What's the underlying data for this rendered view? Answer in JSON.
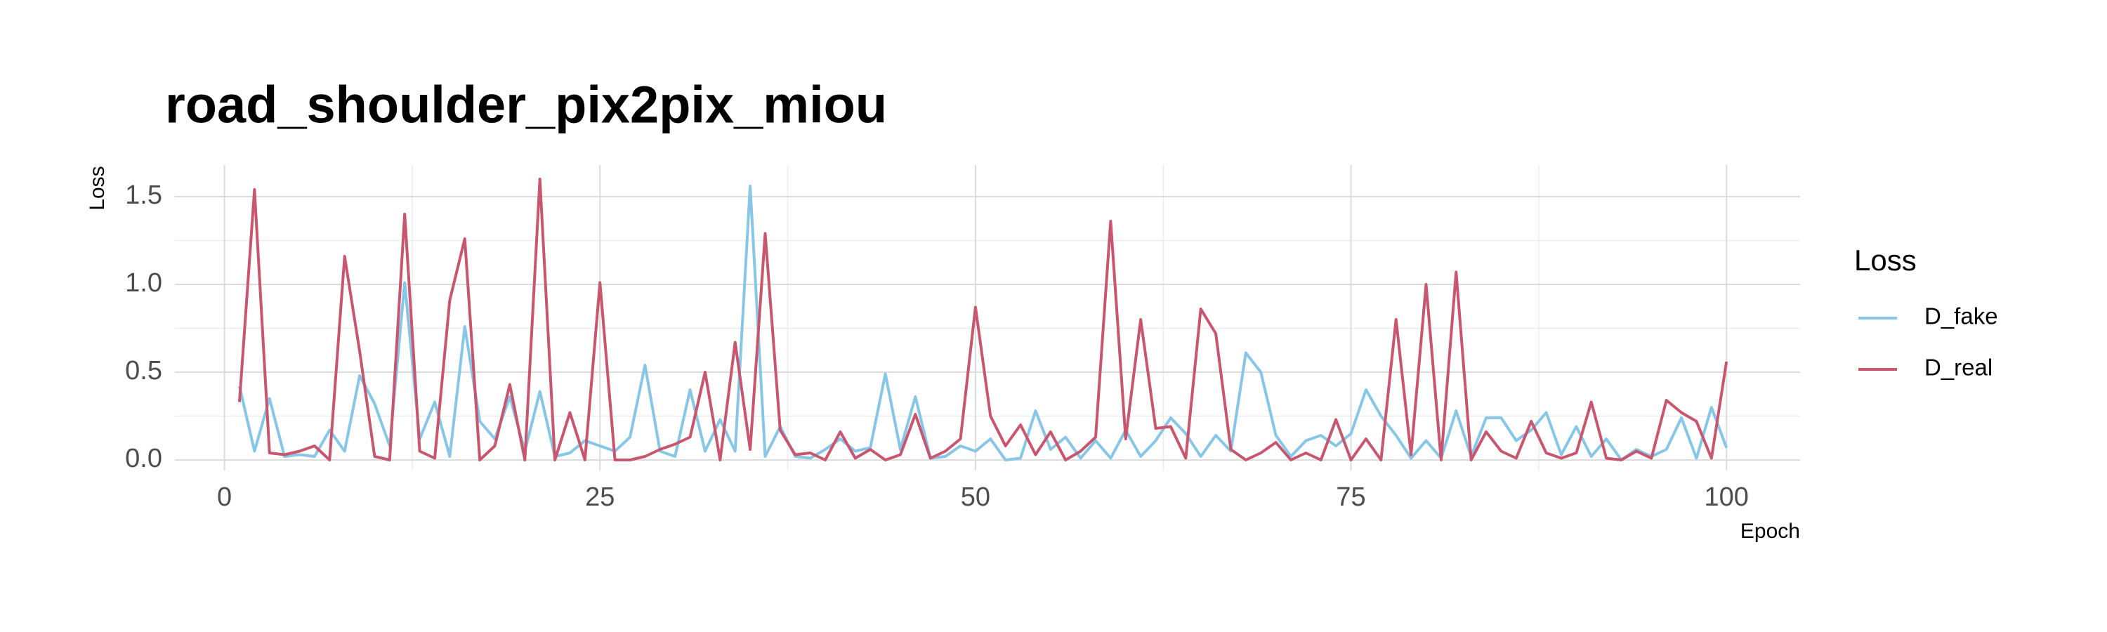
{
  "chart_data": {
    "type": "line",
    "title": "road_shoulder_pix2pix_miou",
    "x_label": "Epoch",
    "y_label": "Loss",
    "legend_title": "Loss",
    "legend": "right",
    "x": [
      1,
      2,
      3,
      4,
      5,
      6,
      7,
      8,
      9,
      10,
      11,
      12,
      13,
      14,
      15,
      16,
      17,
      18,
      19,
      20,
      21,
      22,
      23,
      24,
      25,
      26,
      27,
      28,
      29,
      30,
      31,
      32,
      33,
      34,
      35,
      36,
      37,
      38,
      39,
      40,
      41,
      42,
      43,
      44,
      45,
      46,
      47,
      48,
      49,
      50,
      51,
      52,
      53,
      54,
      55,
      56,
      57,
      58,
      59,
      60,
      61,
      62,
      63,
      64,
      65,
      66,
      67,
      68,
      69,
      70,
      71,
      72,
      73,
      74,
      75,
      76,
      77,
      78,
      79,
      80,
      81,
      82,
      83,
      84,
      85,
      86,
      87,
      88,
      89,
      90,
      91,
      92,
      93,
      94,
      95,
      96,
      97,
      98,
      99,
      100
    ],
    "series": [
      {
        "name": "D_fake",
        "color": "#87c6e6",
        "values": [
          0.42,
          0.05,
          0.35,
          0.02,
          0.03,
          0.02,
          0.17,
          0.05,
          0.48,
          0.32,
          0.08,
          1.01,
          0.12,
          0.33,
          0.02,
          0.76,
          0.22,
          0.12,
          0.36,
          0.05,
          0.39,
          0.02,
          0.04,
          0.11,
          0.08,
          0.05,
          0.13,
          0.54,
          0.05,
          0.02,
          0.4,
          0.05,
          0.23,
          0.05,
          1.56,
          0.02,
          0.19,
          0.02,
          0.01,
          0.06,
          0.12,
          0.05,
          0.07,
          0.49,
          0.06,
          0.36,
          0.01,
          0.02,
          0.08,
          0.05,
          0.12,
          0.0,
          0.01,
          0.28,
          0.06,
          0.13,
          0.01,
          0.11,
          0.01,
          0.17,
          0.02,
          0.11,
          0.24,
          0.15,
          0.02,
          0.14,
          0.05,
          0.61,
          0.5,
          0.14,
          0.02,
          0.11,
          0.14,
          0.08,
          0.15,
          0.4,
          0.25,
          0.14,
          0.01,
          0.11,
          0.01,
          0.28,
          0.02,
          0.24,
          0.24,
          0.11,
          0.17,
          0.27,
          0.03,
          0.19,
          0.02,
          0.12,
          0.0,
          0.06,
          0.02,
          0.06,
          0.24,
          0.01,
          0.3,
          0.07
        ]
      },
      {
        "name": "D_real",
        "color": "#c8566e",
        "values": [
          0.33,
          1.54,
          0.04,
          0.03,
          0.05,
          0.08,
          0.0,
          1.16,
          0.62,
          0.02,
          0.0,
          1.4,
          0.05,
          0.01,
          0.91,
          1.26,
          0.0,
          0.08,
          0.43,
          0.0,
          1.6,
          0.0,
          0.27,
          0.0,
          1.01,
          0.0,
          0.0,
          0.02,
          0.06,
          0.09,
          0.13,
          0.5,
          0.0,
          0.67,
          0.06,
          1.29,
          0.17,
          0.03,
          0.04,
          0.0,
          0.16,
          0.01,
          0.06,
          0.0,
          0.03,
          0.26,
          0.01,
          0.05,
          0.12,
          0.87,
          0.25,
          0.08,
          0.2,
          0.03,
          0.16,
          0.0,
          0.05,
          0.13,
          1.36,
          0.12,
          0.8,
          0.18,
          0.19,
          0.01,
          0.86,
          0.72,
          0.06,
          0.0,
          0.04,
          0.1,
          0.0,
          0.04,
          0.0,
          0.23,
          0.0,
          0.12,
          0.0,
          0.8,
          0.03,
          1.0,
          0.0,
          1.07,
          0.0,
          0.16,
          0.05,
          0.01,
          0.22,
          0.04,
          0.01,
          0.04,
          0.33,
          0.01,
          0.0,
          0.05,
          0.01,
          0.34,
          0.27,
          0.22,
          0.01,
          0.56
        ]
      }
    ],
    "xlim": [
      -3.3,
      104.9
    ],
    "ylim": [
      -0.06,
      1.68
    ],
    "xticks": [
      0,
      25,
      50,
      75,
      100
    ],
    "yticks": [
      {
        "value": 0,
        "label": "0.0"
      },
      0.5,
      {
        "value": 1,
        "label": "1.0"
      },
      1.5
    ],
    "x_minor_ticks": [
      12.5,
      37.5,
      62.5,
      87.5
    ],
    "y_minor_ticks": [
      0.25,
      0.75,
      1.25
    ],
    "grid": true
  }
}
